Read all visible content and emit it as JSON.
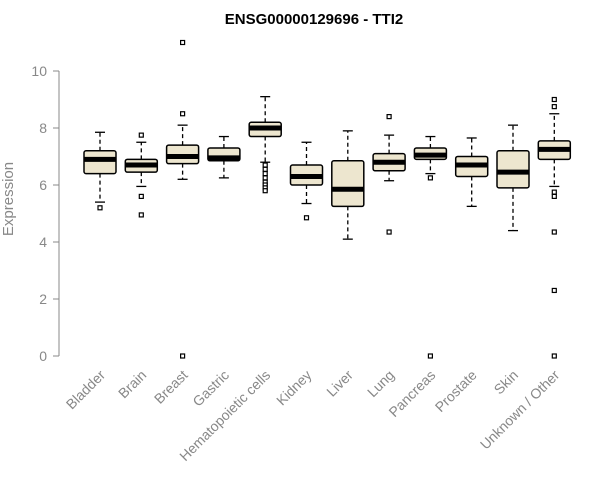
{
  "chart_data": {
    "type": "boxplot",
    "title": "ENSG00000129696 - TTI2",
    "ylabel": "Expression",
    "xlabel": "",
    "ylim": [
      0,
      10
    ],
    "yticks": [
      "0",
      "2",
      "4",
      "6",
      "8",
      "10"
    ],
    "box_fill": "#ede6cf",
    "categories": [
      {
        "label": "Bladder",
        "whisker_low": 5.4,
        "q1": 6.4,
        "median": 6.9,
        "q3": 7.2,
        "whisker_high": 7.85,
        "outliers": [
          5.2
        ]
      },
      {
        "label": "Brain",
        "whisker_low": 5.95,
        "q1": 6.45,
        "median": 6.7,
        "q3": 6.9,
        "whisker_high": 7.5,
        "outliers": [
          7.75,
          5.6,
          4.95
        ]
      },
      {
        "label": "Breast",
        "whisker_low": 6.2,
        "q1": 6.75,
        "median": 7.0,
        "q3": 7.4,
        "whisker_high": 8.1,
        "outliers": [
          11.0,
          8.5,
          0.0
        ]
      },
      {
        "label": "Gastric",
        "whisker_low": 6.25,
        "q1": 6.85,
        "median": 6.95,
        "q3": 7.3,
        "whisker_high": 7.7,
        "outliers": []
      },
      {
        "label": "Hematopoietic cells",
        "whisker_low": 6.8,
        "q1": 7.7,
        "median": 8.0,
        "q3": 8.2,
        "whisker_high": 9.1,
        "outliers": [
          6.7,
          6.55,
          6.4,
          6.25,
          6.1,
          6.0,
          5.9,
          5.8
        ]
      },
      {
        "label": "Kidney",
        "whisker_low": 5.35,
        "q1": 6.0,
        "median": 6.3,
        "q3": 6.7,
        "whisker_high": 7.5,
        "outliers": [
          4.85
        ]
      },
      {
        "label": "Liver",
        "whisker_low": 4.1,
        "q1": 5.25,
        "median": 5.85,
        "q3": 6.85,
        "whisker_high": 7.9,
        "outliers": []
      },
      {
        "label": "Lung",
        "whisker_low": 6.15,
        "q1": 6.5,
        "median": 6.8,
        "q3": 7.1,
        "whisker_high": 7.75,
        "outliers": [
          8.4,
          4.35
        ]
      },
      {
        "label": "Pancreas",
        "whisker_low": 6.4,
        "q1": 6.9,
        "median": 7.05,
        "q3": 7.3,
        "whisker_high": 7.7,
        "outliers": [
          6.25,
          0.0
        ]
      },
      {
        "label": "Prostate",
        "whisker_low": 5.25,
        "q1": 6.3,
        "median": 6.7,
        "q3": 7.0,
        "whisker_high": 7.65,
        "outliers": []
      },
      {
        "label": "Skin",
        "whisker_low": 4.4,
        "q1": 5.9,
        "median": 6.45,
        "q3": 7.2,
        "whisker_high": 8.1,
        "outliers": []
      },
      {
        "label": "Unknown / Other",
        "whisker_low": 5.95,
        "q1": 6.9,
        "median": 7.25,
        "q3": 7.55,
        "whisker_high": 8.5,
        "outliers": [
          9.0,
          8.75,
          5.75,
          5.6,
          4.35,
          2.3,
          0.0
        ]
      }
    ]
  }
}
